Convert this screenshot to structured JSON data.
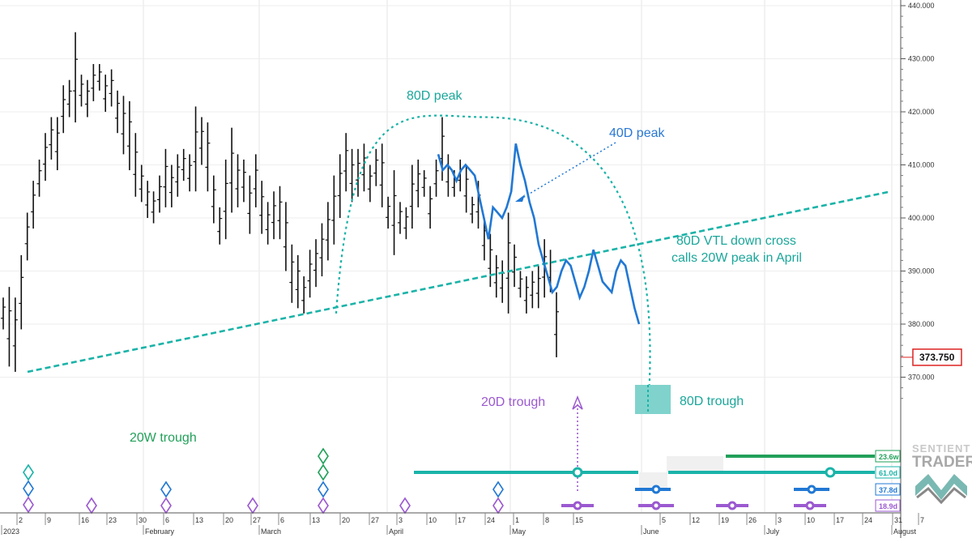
{
  "chart_data": {
    "type": "ohlc",
    "price_axis": {
      "ticks": [
        "440.000",
        "430.000",
        "420.000",
        "410.000",
        "400.000",
        "390.000",
        "380.000",
        "370.000"
      ],
      "ylim": [
        362,
        441
      ],
      "last_price": "373.750",
      "last_value": 373.75
    },
    "date_axis": {
      "day_ticks": [
        "2",
        "9",
        "16",
        "23",
        "30",
        "6",
        "13",
        "20",
        "27",
        "6",
        "13",
        "20",
        "27",
        "3",
        "10",
        "17",
        "24",
        "1",
        "8",
        "15",
        "5",
        "12",
        "19",
        "26",
        "3",
        "10",
        "17",
        "24",
        "31",
        "7"
      ],
      "month_labels": [
        "2023",
        "February",
        "March",
        "April",
        "May",
        "June",
        "July",
        "August"
      ]
    },
    "price_bars": [
      {
        "h": 385,
        "l": 379
      },
      {
        "h": 387,
        "l": 372
      },
      {
        "h": 385,
        "l": 371
      },
      {
        "h": 393,
        "l": 379
      },
      {
        "h": 401,
        "l": 392
      },
      {
        "h": 407,
        "l": 398
      },
      {
        "h": 411,
        "l": 404
      },
      {
        "h": 416,
        "l": 407
      },
      {
        "h": 419,
        "l": 411
      },
      {
        "h": 419,
        "l": 409
      },
      {
        "h": 425,
        "l": 416
      },
      {
        "h": 426,
        "l": 419
      },
      {
        "h": 435,
        "l": 418
      },
      {
        "h": 427,
        "l": 421
      },
      {
        "h": 426,
        "l": 419
      },
      {
        "h": 429,
        "l": 422
      },
      {
        "h": 429,
        "l": 424
      },
      {
        "h": 427,
        "l": 420
      },
      {
        "h": 428,
        "l": 421
      },
      {
        "h": 424,
        "l": 416
      },
      {
        "h": 423,
        "l": 412
      },
      {
        "h": 422,
        "l": 409
      },
      {
        "h": 416,
        "l": 404
      },
      {
        "h": 410,
        "l": 403
      },
      {
        "h": 407,
        "l": 400
      },
      {
        "h": 405,
        "l": 399
      },
      {
        "h": 408,
        "l": 401
      },
      {
        "h": 413,
        "l": 402
      },
      {
        "h": 410,
        "l": 402
      },
      {
        "h": 412,
        "l": 404
      },
      {
        "h": 413,
        "l": 407
      },
      {
        "h": 412,
        "l": 405
      },
      {
        "h": 421,
        "l": 405
      },
      {
        "h": 419,
        "l": 410
      },
      {
        "h": 418,
        "l": 405
      },
      {
        "h": 408,
        "l": 399
      },
      {
        "h": 402,
        "l": 395
      },
      {
        "h": 411,
        "l": 396
      },
      {
        "h": 417,
        "l": 401
      },
      {
        "h": 412,
        "l": 402
      },
      {
        "h": 411,
        "l": 403
      },
      {
        "h": 408,
        "l": 397
      },
      {
        "h": 412,
        "l": 402
      },
      {
        "h": 407,
        "l": 397
      },
      {
        "h": 403,
        "l": 395
      },
      {
        "h": 405,
        "l": 396
      },
      {
        "h": 406,
        "l": 396
      },
      {
        "h": 403,
        "l": 390
      },
      {
        "h": 395,
        "l": 384
      },
      {
        "h": 393,
        "l": 383
      },
      {
        "h": 389,
        "l": 382
      },
      {
        "h": 394,
        "l": 385
      },
      {
        "h": 396,
        "l": 387
      },
      {
        "h": 399,
        "l": 389
      },
      {
        "h": 403,
        "l": 392
      },
      {
        "h": 408,
        "l": 395
      },
      {
        "h": 412,
        "l": 400
      },
      {
        "h": 416,
        "l": 405
      },
      {
        "h": 413,
        "l": 403
      },
      {
        "h": 413,
        "l": 404
      },
      {
        "h": 414,
        "l": 405
      },
      {
        "h": 410,
        "l": 403
      },
      {
        "h": 413,
        "l": 406
      },
      {
        "h": 414,
        "l": 402
      },
      {
        "h": 404,
        "l": 398
      },
      {
        "h": 409,
        "l": 393
      },
      {
        "h": 403,
        "l": 397
      },
      {
        "h": 402,
        "l": 396
      },
      {
        "h": 410,
        "l": 398
      },
      {
        "h": 411,
        "l": 402
      },
      {
        "h": 409,
        "l": 404
      },
      {
        "h": 406,
        "l": 398
      },
      {
        "h": 411,
        "l": 404
      },
      {
        "h": 419,
        "l": 407
      },
      {
        "h": 412,
        "l": 404
      },
      {
        "h": 409,
        "l": 404
      },
      {
        "h": 411,
        "l": 405
      },
      {
        "h": 410,
        "l": 401
      },
      {
        "h": 404,
        "l": 399
      },
      {
        "h": 407,
        "l": 398
      },
      {
        "h": 400,
        "l": 392
      },
      {
        "h": 397,
        "l": 387
      },
      {
        "h": 393,
        "l": 385
      },
      {
        "h": 392,
        "l": 384
      },
      {
        "h": 401,
        "l": 382
      },
      {
        "h": 395,
        "l": 387
      },
      {
        "h": 390,
        "l": 385
      },
      {
        "h": 389,
        "l": 382
      },
      {
        "h": 390,
        "l": 383
      },
      {
        "h": 391,
        "l": 383
      },
      {
        "h": 396,
        "l": 385
      },
      {
        "h": 394,
        "l": 386
      },
      {
        "h": 386,
        "l": 373.75
      }
    ],
    "projection_40D": [
      412,
      409,
      410,
      409,
      407,
      409,
      410,
      409,
      408,
      404,
      400,
      396,
      402,
      401,
      400,
      402,
      405,
      414,
      410,
      407,
      403,
      400,
      395,
      392,
      389,
      386,
      387,
      390,
      392,
      391,
      388,
      385,
      387,
      390,
      394,
      391,
      388,
      387,
      386,
      390,
      392,
      391,
      387,
      383,
      380
    ],
    "vtl_80D": {
      "start": {
        "label": "2",
        "value": 371
      },
      "end": {
        "label": "7",
        "value": 405
      }
    },
    "cycle_arc_80D": {
      "start_value": 382,
      "peak_value": 419,
      "end_value": 364
    },
    "annotations": [
      "80D peak",
      "40D peak",
      "80D VTL down cross",
      "calls 20W peak in April",
      "20D trough",
      "80D trough",
      "20W trough"
    ],
    "cycle_periods": [
      {
        "label": "23.6w",
        "color": "#22a05a"
      },
      {
        "label": "61.0d",
        "color": "#1bb3a8"
      },
      {
        "label": "37.8d",
        "color": "#2178d4"
      },
      {
        "label": "18.9d",
        "color": "#9b59d0"
      }
    ],
    "watermark": [
      "SENTIENT",
      "TRADER"
    ]
  }
}
